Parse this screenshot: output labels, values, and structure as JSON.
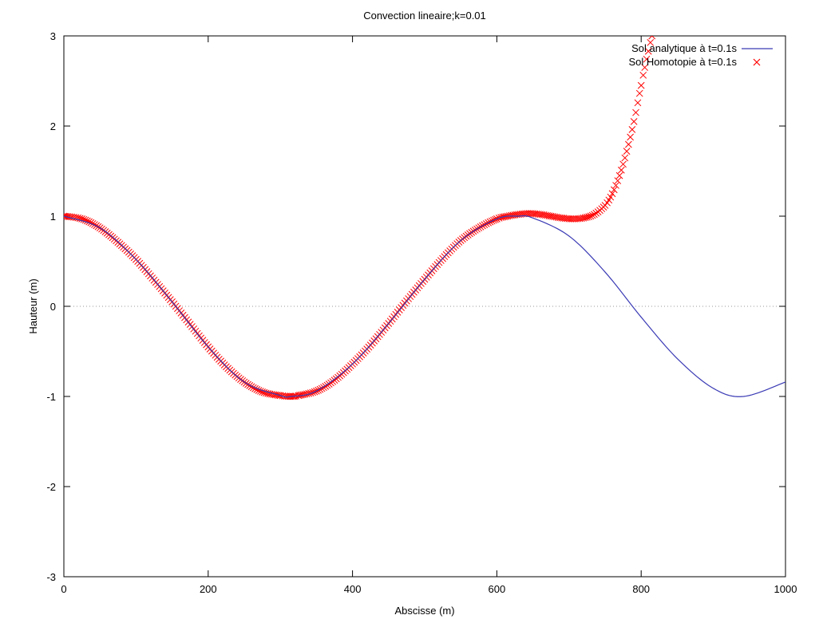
{
  "chart_data": {
    "type": "line",
    "title": "Convection lineaire;k=0.01",
    "xlabel": "Abscisse (m)",
    "ylabel": "Hauteur (m)",
    "xlim": [
      0,
      1000
    ],
    "ylim": [
      -3,
      3
    ],
    "x_ticks": [
      0,
      200,
      400,
      600,
      800,
      1000
    ],
    "y_ticks": [
      -3,
      -2,
      -1,
      0,
      1,
      2,
      3
    ],
    "zero_line": true,
    "grid": false,
    "legend_position": "top-right",
    "series": [
      {
        "name": "Sol analytique à t=0.1s",
        "style": "line",
        "color": "#3a3ab5",
        "x": [
          0,
          50,
          100,
          150,
          200,
          250,
          300,
          315,
          350,
          400,
          450,
          500,
          550,
          600,
          630,
          650,
          700,
          750,
          800,
          850,
          900,
          942,
          1000
        ],
        "y": [
          1.0,
          0.87,
          0.52,
          0.05,
          -0.45,
          -0.84,
          -0.99,
          -1.0,
          -0.94,
          -0.64,
          -0.19,
          0.3,
          0.73,
          0.97,
          1.0,
          0.98,
          0.78,
          0.38,
          -0.12,
          -0.58,
          -0.91,
          -1.0,
          -0.84
        ]
      },
      {
        "name": "Sol Homotopie à t=0.1s",
        "style": "points",
        "marker": "x",
        "color": "#ff0000",
        "x": [
          0,
          25,
          50,
          75,
          100,
          125,
          150,
          175,
          200,
          225,
          250,
          275,
          300,
          315,
          325,
          350,
          375,
          400,
          425,
          450,
          475,
          500,
          525,
          550,
          575,
          600,
          615,
          630,
          645,
          660,
          675,
          690,
          705,
          720,
          735,
          750,
          760,
          770,
          780,
          790,
          800,
          805,
          810,
          815
        ],
        "y": [
          1.0,
          0.97,
          0.87,
          0.71,
          0.52,
          0.29,
          0.05,
          -0.2,
          -0.45,
          -0.67,
          -0.84,
          -0.95,
          -0.99,
          -1.0,
          -0.99,
          -0.94,
          -0.82,
          -0.64,
          -0.43,
          -0.19,
          0.06,
          0.3,
          0.53,
          0.73,
          0.87,
          0.97,
          1.0,
          1.02,
          1.03,
          1.02,
          1.0,
          0.98,
          0.97,
          0.98,
          1.02,
          1.12,
          1.25,
          1.45,
          1.72,
          2.05,
          2.45,
          2.65,
          2.83,
          3.0
        ]
      }
    ]
  }
}
